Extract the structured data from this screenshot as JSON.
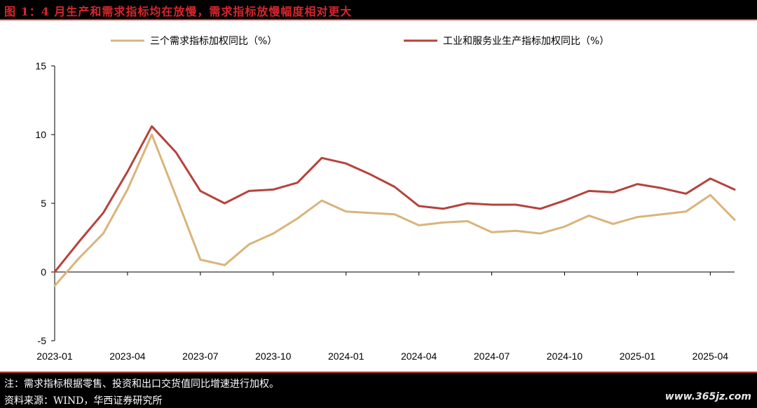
{
  "title": "图 1：4 月生产和需求指标均在放慢，需求指标放慢幅度相对更大",
  "footer": {
    "note": "注：需求指标根据零售、投资和出口交货值同比增速进行加权。",
    "source": "资料来源：WIND，华西证券研究所",
    "watermark": "www.365jz.com"
  },
  "colors": {
    "demand": "#d9b47a",
    "production": "#b5433c",
    "axis": "#000000"
  },
  "chart_data": {
    "type": "line",
    "x": [
      "2023-01",
      "2023-02",
      "2023-03",
      "2023-04",
      "2023-05",
      "2023-06",
      "2023-07",
      "2023-08",
      "2023-09",
      "2023-10",
      "2023-11",
      "2023-12",
      "2024-01",
      "2024-02",
      "2024-03",
      "2024-04",
      "2024-05",
      "2024-06",
      "2024-07",
      "2024-08",
      "2024-09",
      "2024-10",
      "2024-11",
      "2024-12",
      "2025-01",
      "2025-02",
      "2025-03",
      "2025-04",
      "2025-05"
    ],
    "x_ticks": [
      "2023-01",
      "2023-04",
      "2023-07",
      "2023-10",
      "2024-01",
      "2024-04",
      "2024-07",
      "2024-10",
      "2025-01",
      "2025-04"
    ],
    "ylim": [
      -5,
      15
    ],
    "y_ticks": [
      -5,
      0,
      5,
      10,
      15
    ],
    "legend_position": "top",
    "series": [
      {
        "name": "三个需求指标加权同比（%）",
        "color_key": "demand",
        "values": [
          -1.0,
          1.0,
          2.8,
          6.0,
          10.0,
          5.5,
          0.9,
          0.5,
          2.0,
          2.8,
          3.9,
          5.2,
          4.4,
          4.3,
          4.2,
          3.4,
          3.6,
          3.7,
          2.9,
          3.0,
          2.8,
          3.3,
          4.1,
          3.5,
          4.0,
          4.2,
          4.4,
          5.6,
          3.8
        ]
      },
      {
        "name": "工业和服务业生产指标加权同比（%）",
        "color_key": "production",
        "values": [
          0.0,
          2.2,
          4.3,
          7.3,
          10.6,
          8.7,
          5.9,
          5.0,
          5.9,
          6.0,
          6.5,
          8.3,
          7.9,
          7.1,
          6.2,
          4.8,
          4.6,
          5.0,
          4.9,
          4.9,
          4.6,
          5.2,
          5.9,
          5.8,
          6.4,
          6.1,
          5.7,
          6.8,
          6.0
        ]
      }
    ]
  }
}
